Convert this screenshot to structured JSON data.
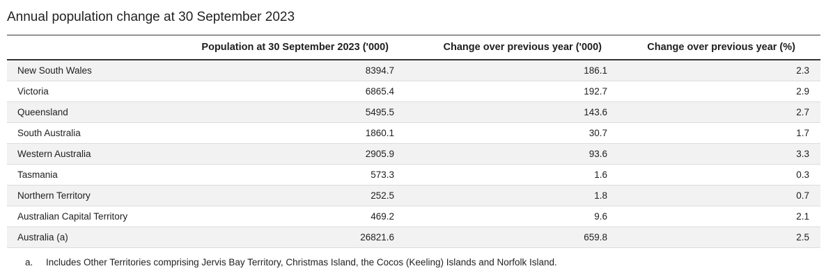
{
  "title": "Annual population change at 30 September 2023",
  "table": {
    "headers": [
      "",
      "Population at 30 September 2023 ('000)",
      "Change over previous year ('000)",
      "Change over previous year (%)"
    ],
    "rows": [
      [
        "New South Wales",
        "8394.7",
        "186.1",
        "2.3"
      ],
      [
        "Victoria",
        "6865.4",
        "192.7",
        "2.9"
      ],
      [
        "Queensland",
        "5495.5",
        "143.6",
        "2.7"
      ],
      [
        "South Australia",
        "1860.1",
        "30.7",
        "1.7"
      ],
      [
        "Western Australia",
        "2905.9",
        "93.6",
        "3.3"
      ],
      [
        "Tasmania",
        "573.3",
        "1.6",
        "0.3"
      ],
      [
        "Northern Territory",
        "252.5",
        "1.8",
        "0.7"
      ],
      [
        "Australian Capital Territory",
        "469.2",
        "9.6",
        "2.1"
      ],
      [
        "Australia (a)",
        "26821.6",
        "659.8",
        "2.5"
      ]
    ]
  },
  "footnote": {
    "marker": "a.",
    "text": "Includes Other Territories comprising Jervis Bay Territory, Christmas Island, the Cocos (Keeling) Islands and Norfolk Island."
  }
}
